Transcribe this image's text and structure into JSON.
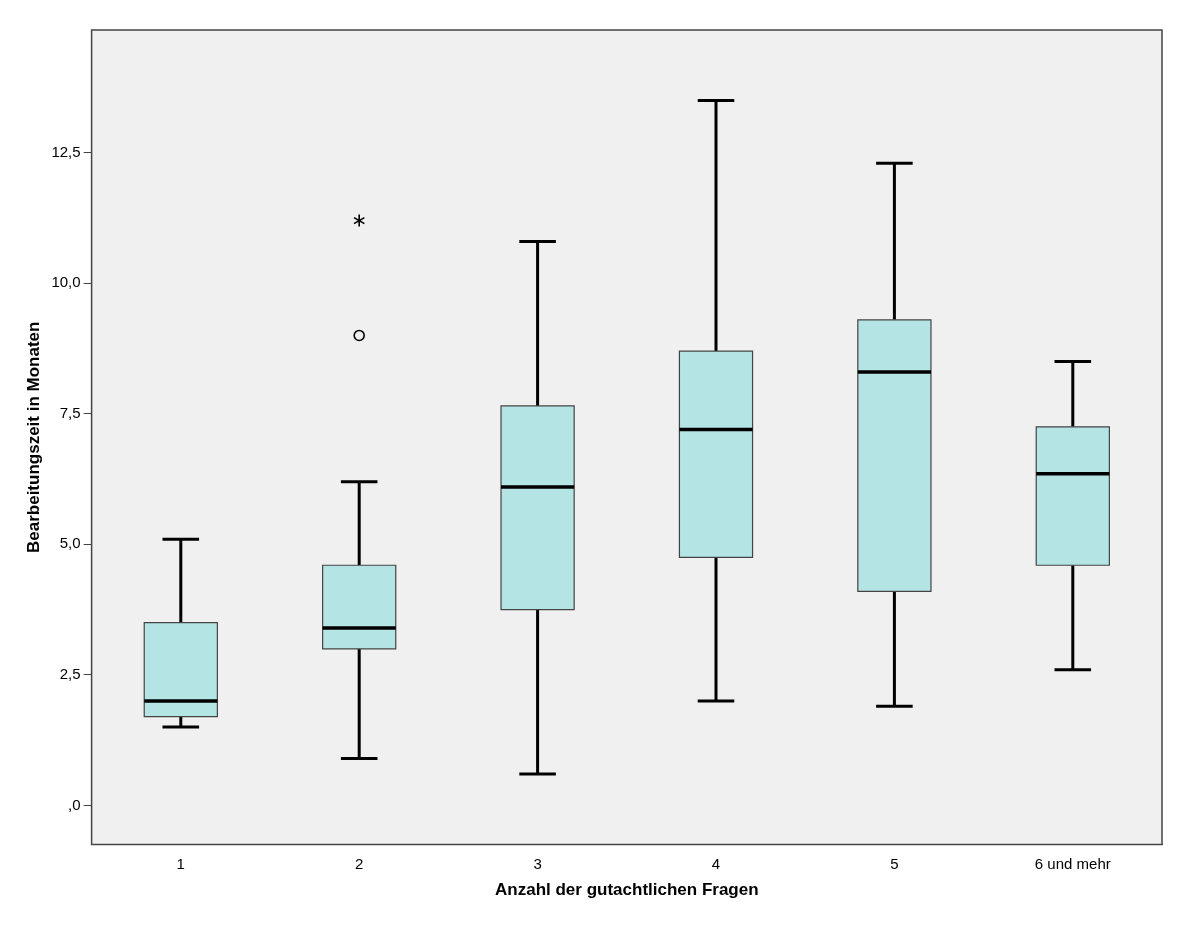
{
  "chart_data": {
    "type": "box",
    "xlabel": "Anzahl der gutachtlichen Fragen",
    "ylabel": "Bearbeitungszeit in Monaten",
    "categories": [
      "1",
      "2",
      "3",
      "4",
      "5",
      "6 und mehr"
    ],
    "color": "#b4e4e4",
    "boxes": [
      {
        "low": 1.5,
        "q1": 1.7,
        "median": 2.0,
        "q3": 3.5,
        "high": 5.1
      },
      {
        "low": 0.9,
        "q1": 3.0,
        "median": 3.4,
        "q3": 4.6,
        "high": 6.2,
        "outliers": [
          9.0,
          11.2
        ]
      },
      {
        "low": 0.6,
        "q1": 3.75,
        "median": 6.1,
        "q3": 7.65,
        "high": 10.8
      },
      {
        "low": 2.0,
        "q1": 4.75,
        "median": 7.2,
        "q3": 8.7,
        "high": 13.5
      },
      {
        "low": 1.9,
        "q1": 4.1,
        "median": 8.3,
        "q3": 9.3,
        "high": 12.3
      },
      {
        "low": 2.6,
        "q1": 4.6,
        "median": 6.35,
        "q3": 7.25,
        "high": 8.5
      }
    ],
    "ylim": [
      -0.75,
      14.85
    ],
    "yticks": [
      {
        "value": 0,
        "label": ",0"
      },
      {
        "value": 2.5,
        "label": "2,5"
      },
      {
        "value": 5,
        "label": "5,0"
      },
      {
        "value": 7.5,
        "label": "7,5"
      },
      {
        "value": 10,
        "label": "10,0"
      },
      {
        "value": 12.5,
        "label": "12,5"
      }
    ],
    "grid": false,
    "legend": false
  }
}
